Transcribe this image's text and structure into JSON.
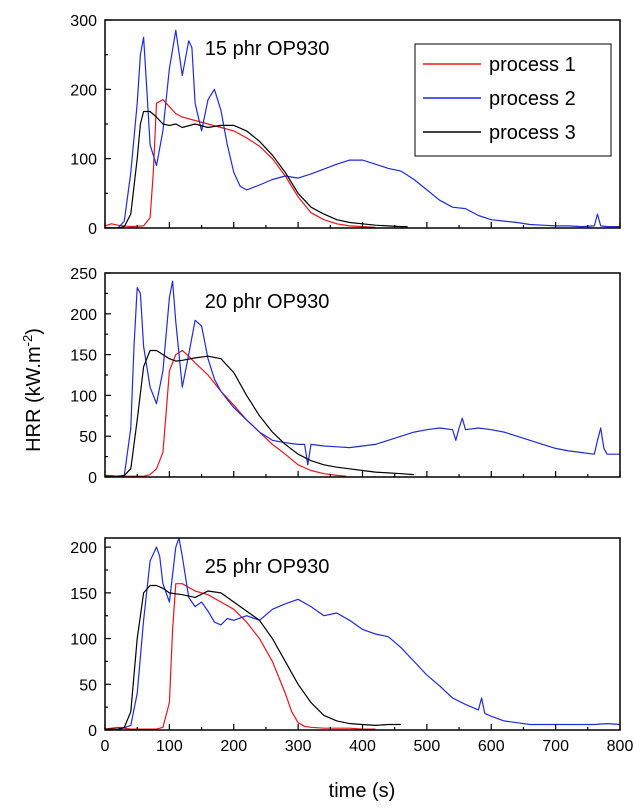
{
  "chart_data": {
    "type": "line",
    "xlabel": "time (s)",
    "ylabel": "HRR (kW.m",
    "ylabel_sup": "-2",
    "ylabel_end": ")",
    "xlim": [
      0,
      800
    ],
    "x_ticks": [
      0,
      100,
      200,
      300,
      400,
      500,
      600,
      700,
      800
    ],
    "x_tick_labels": [
      "0",
      "100",
      "200",
      "300",
      "400",
      "500",
      "600",
      "700",
      "800"
    ],
    "grid": false,
    "legend": {
      "placement": "top-right of first panel",
      "entries": [
        "process 1",
        "process 2",
        "process 3"
      ]
    },
    "colors": {
      "process 1": "#e8161b",
      "process 2": "#1f2bd6",
      "process 3": "#000000"
    },
    "panels": [
      {
        "title": "15 phr OP930",
        "ylim": [
          0,
          300
        ],
        "y_ticks": [
          0,
          100,
          200,
          300
        ],
        "y_tick_labels": [
          "0",
          "100",
          "200",
          "300"
        ],
        "series": [
          {
            "name": "process 1",
            "color": "#e8161b",
            "x": [
              0,
              10,
              20,
              40,
              60,
              70,
              75,
              80,
              90,
              100,
              110,
              120,
              140,
              160,
              180,
              200,
              220,
              240,
              260,
              280,
              300,
              320,
              340,
              360,
              380,
              400,
              420
            ],
            "y": [
              3,
              6,
              4,
              2,
              3,
              15,
              80,
              180,
              185,
              175,
              165,
              160,
              155,
              150,
              145,
              140,
              130,
              118,
              100,
              75,
              45,
              22,
              12,
              6,
              3,
              2,
              1
            ]
          },
          {
            "name": "process 2",
            "color": "#1f2bd6",
            "x": [
              0,
              20,
              30,
              40,
              50,
              55,
              60,
              65,
              70,
              80,
              90,
              100,
              110,
              120,
              130,
              135,
              140,
              150,
              160,
              170,
              180,
              190,
              200,
              210,
              220,
              240,
              260,
              280,
              300,
              320,
              340,
              360,
              380,
              400,
              420,
              440,
              460,
              480,
              500,
              520,
              540,
              560,
              580,
              600,
              620,
              640,
              660,
              680,
              700,
              720,
              740,
              760,
              765,
              770,
              780,
              800
            ],
            "y": [
              0,
              0,
              10,
              80,
              180,
              250,
              275,
              200,
              120,
              90,
              140,
              230,
              285,
              220,
              270,
              260,
              180,
              140,
              185,
              200,
              170,
              120,
              80,
              60,
              55,
              62,
              70,
              75,
              72,
              78,
              85,
              92,
              98,
              98,
              92,
              86,
              82,
              70,
              55,
              40,
              30,
              28,
              18,
              12,
              10,
              8,
              5,
              4,
              3,
              3,
              2,
              3,
              20,
              3,
              2,
              2
            ]
          },
          {
            "name": "process 3",
            "color": "#000000",
            "x": [
              0,
              20,
              30,
              40,
              50,
              55,
              60,
              70,
              80,
              90,
              100,
              110,
              120,
              140,
              160,
              180,
              200,
              220,
              240,
              260,
              280,
              300,
              320,
              340,
              360,
              380,
              400,
              420,
              440,
              460,
              470
            ],
            "y": [
              0,
              0,
              2,
              20,
              100,
              150,
              168,
              168,
              160,
              150,
              148,
              150,
              145,
              150,
              145,
              148,
              148,
              140,
              125,
              105,
              80,
              50,
              30,
              20,
              12,
              8,
              6,
              4,
              3,
              2,
              2
            ]
          }
        ]
      },
      {
        "title": "20 phr OP930",
        "ylim": [
          0,
          250
        ],
        "y_ticks": [
          0,
          50,
          100,
          150,
          200,
          250
        ],
        "y_tick_labels": [
          "0",
          "50",
          "100",
          "150",
          "200",
          "250"
        ],
        "series": [
          {
            "name": "process 1",
            "color": "#e8161b",
            "x": [
              0,
              20,
              40,
              60,
              70,
              80,
              90,
              95,
              100,
              110,
              120,
              130,
              140,
              160,
              180,
              200,
              220,
              240,
              260,
              280,
              300,
              320,
              340,
              360,
              375
            ],
            "y": [
              2,
              1,
              1,
              1,
              3,
              10,
              30,
              80,
              130,
              150,
              155,
              148,
              140,
              125,
              105,
              88,
              70,
              55,
              40,
              28,
              15,
              8,
              4,
              2,
              1
            ]
          },
          {
            "name": "process 2",
            "color": "#1f2bd6",
            "x": [
              0,
              20,
              30,
              40,
              45,
              50,
              55,
              60,
              70,
              80,
              90,
              100,
              105,
              110,
              120,
              130,
              140,
              150,
              160,
              170,
              180,
              190,
              200,
              220,
              240,
              260,
              280,
              300,
              310,
              315,
              320,
              340,
              360,
              380,
              400,
              420,
              440,
              460,
              480,
              500,
              520,
              540,
              545,
              550,
              555,
              560,
              580,
              600,
              620,
              640,
              660,
              680,
              700,
              720,
              740,
              760,
              765,
              770,
              775,
              780,
              800
            ],
            "y": [
              0,
              0,
              2,
              60,
              160,
              232,
              225,
              160,
              110,
              90,
              130,
              220,
              240,
              190,
              110,
              150,
              192,
              185,
              145,
              120,
              105,
              95,
              85,
              70,
              55,
              45,
              42,
              40,
              40,
              15,
              40,
              38,
              37,
              36,
              38,
              40,
              45,
              50,
              55,
              58,
              60,
              58,
              45,
              60,
              72,
              58,
              60,
              58,
              55,
              50,
              45,
              40,
              35,
              32,
              30,
              28,
              45,
              60,
              35,
              28,
              28
            ]
          },
          {
            "name": "process 3",
            "color": "#000000",
            "x": [
              0,
              20,
              30,
              40,
              50,
              60,
              70,
              80,
              90,
              100,
              110,
              120,
              140,
              160,
              180,
              200,
              220,
              240,
              260,
              280,
              300,
              320,
              340,
              360,
              380,
              400,
              420,
              440,
              460,
              480
            ],
            "y": [
              1,
              1,
              2,
              10,
              70,
              135,
              155,
              155,
              150,
              145,
              142,
              143,
              146,
              148,
              145,
              128,
              100,
              75,
              55,
              40,
              28,
              20,
              15,
              12,
              10,
              8,
              6,
              5,
              4,
              3
            ]
          }
        ]
      },
      {
        "title": "25 phr OP930",
        "ylim": [
          0,
          210
        ],
        "y_ticks": [
          0,
          50,
          100,
          150,
          200
        ],
        "y_tick_labels": [
          "0",
          "50",
          "100",
          "150",
          "200"
        ],
        "series": [
          {
            "name": "process 1",
            "color": "#e8161b",
            "x": [
              0,
              20,
              40,
              60,
              80,
              90,
              100,
              105,
              110,
              120,
              140,
              160,
              180,
              200,
              220,
              240,
              260,
              280,
              290,
              300,
              310,
              320,
              340,
              360,
              380,
              400,
              420
            ],
            "y": [
              1,
              3,
              1,
              1,
              1,
              3,
              30,
              110,
              160,
              160,
              152,
              148,
              140,
              132,
              118,
              100,
              75,
              40,
              20,
              8,
              4,
              3,
              2,
              2,
              2,
              1,
              1
            ]
          },
          {
            "name": "process 2",
            "color": "#1f2bd6",
            "x": [
              0,
              20,
              40,
              50,
              60,
              70,
              80,
              85,
              90,
              100,
              110,
              115,
              120,
              130,
              140,
              150,
              160,
              170,
              180,
              190,
              200,
              220,
              240,
              260,
              280,
              300,
              320,
              340,
              360,
              380,
              400,
              420,
              440,
              460,
              480,
              500,
              520,
              540,
              560,
              580,
              585,
              590,
              600,
              620,
              640,
              660,
              680,
              700,
              720,
              740,
              760,
              780,
              800
            ],
            "y": [
              0,
              0,
              5,
              40,
              120,
              185,
              200,
              190,
              160,
              140,
              200,
              210,
              190,
              145,
              135,
              140,
              130,
              118,
              115,
              122,
              120,
              125,
              120,
              132,
              138,
              143,
              135,
              125,
              128,
              120,
              110,
              105,
              102,
              90,
              75,
              60,
              48,
              35,
              28,
              22,
              35,
              18,
              15,
              10,
              8,
              6,
              6,
              6,
              6,
              6,
              6,
              7,
              6
            ]
          },
          {
            "name": "process 3",
            "color": "#000000",
            "x": [
              0,
              20,
              30,
              40,
              50,
              60,
              70,
              80,
              90,
              100,
              120,
              140,
              160,
              180,
              200,
              220,
              240,
              260,
              280,
              300,
              320,
              340,
              360,
              380,
              400,
              420,
              440,
              460
            ],
            "y": [
              1,
              1,
              3,
              20,
              100,
              150,
              158,
              158,
              155,
              150,
              148,
              145,
              152,
              150,
              140,
              130,
              120,
              100,
              75,
              50,
              30,
              16,
              10,
              7,
              6,
              5,
              6,
              6
            ]
          }
        ]
      }
    ]
  }
}
